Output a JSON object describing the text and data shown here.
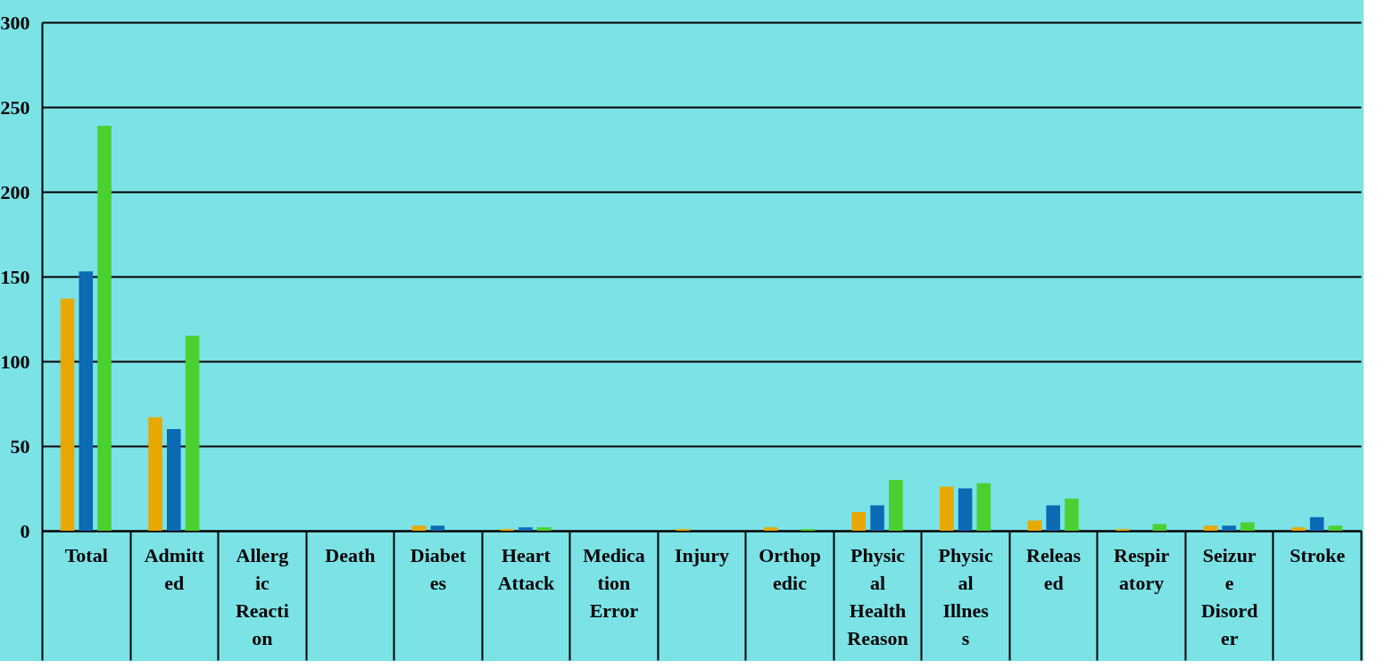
{
  "chart_data": {
    "type": "bar",
    "categories": [
      "Total",
      "Admitted",
      "Allergic Reaction",
      "Death",
      "Diabetes",
      "Heart Attack",
      "Medication Error",
      "Injury",
      "Orthopedic",
      "Physical Health Reason",
      "Physical Illness",
      "Released",
      "Respiratory",
      "Seizure Disorder",
      "Stroke"
    ],
    "series": [
      {
        "color": "#e8a800",
        "values": [
          137,
          67,
          0,
          0,
          3,
          1,
          0,
          1,
          2,
          11,
          26,
          6,
          1,
          3,
          2
        ]
      },
      {
        "color": "#0a6ab4",
        "values": [
          153,
          60,
          0,
          0,
          3,
          2,
          0,
          0,
          0,
          15,
          25,
          15,
          0,
          3,
          8
        ]
      },
      {
        "color": "#4ad030",
        "values": [
          239,
          115,
          0,
          0,
          0,
          2,
          0,
          0,
          1,
          30,
          28,
          19,
          4,
          5,
          3
        ]
      }
    ],
    "ylim": [
      0,
      300
    ],
    "yticks": [
      0,
      50,
      100,
      150,
      200,
      250,
      300
    ],
    "grid": "y",
    "legend": false
  }
}
